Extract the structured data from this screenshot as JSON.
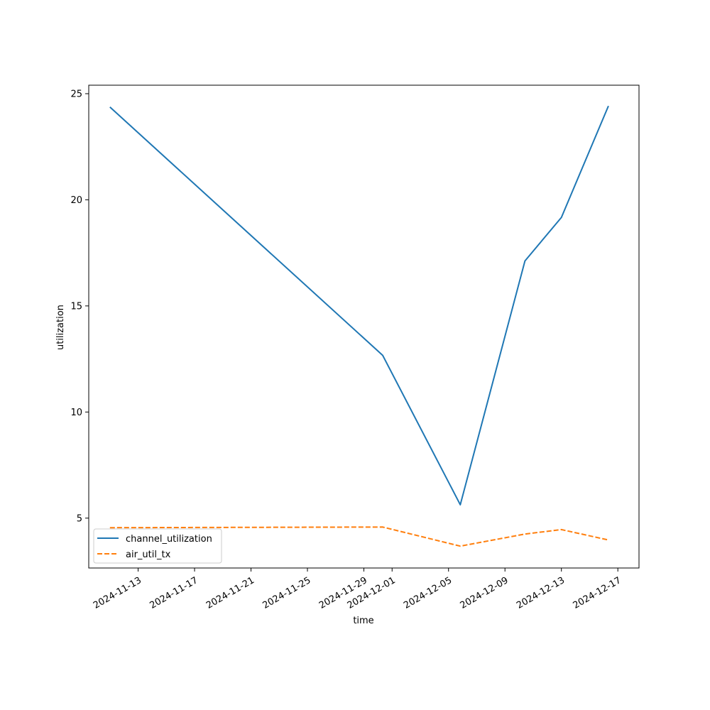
{
  "chart_data": {
    "type": "line",
    "title": "",
    "xlabel": "time",
    "ylabel": "utilization",
    "x_axis_type": "date",
    "xlim": [
      "2024-11-09T12:00",
      "2024-12-18T12:00"
    ],
    "ylim": [
      2.65,
      25.4
    ],
    "x_ticks": [
      "2024-11-13",
      "2024-11-17",
      "2024-11-21",
      "2024-11-25",
      "2024-11-29",
      "2024-12-01",
      "2024-12-05",
      "2024-12-09",
      "2024-12-13",
      "2024-12-17"
    ],
    "y_ticks": [
      5,
      10,
      15,
      20,
      25
    ],
    "grid": false,
    "legend_position": "lower-left",
    "series": [
      {
        "name": "channel_utilization",
        "color": "#1f77b4",
        "dash": "solid",
        "x": [
          "2024-11-11",
          "2024-11-30T08:00",
          "2024-12-05T20:00",
          "2024-12-10T10:00",
          "2024-12-13",
          "2024-12-16T08:00"
        ],
        "values": [
          24.37,
          12.67,
          5.63,
          17.12,
          19.17,
          24.42
        ]
      },
      {
        "name": "air_util_tx",
        "color": "#ff7f0e",
        "dash": "dashed",
        "x": [
          "2024-11-11",
          "2024-11-30T08:00",
          "2024-12-05T20:00",
          "2024-12-10T10:00",
          "2024-12-13",
          "2024-12-16T08:00"
        ],
        "values": [
          4.55,
          4.58,
          3.68,
          4.25,
          4.46,
          3.97
        ]
      }
    ]
  }
}
